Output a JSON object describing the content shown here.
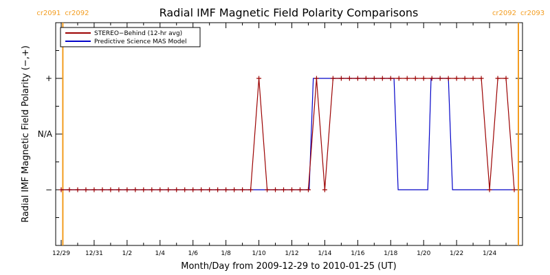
{
  "chart_data": {
    "type": "line",
    "title": "Radial IMF Magnetic Field Polarity Comparisons",
    "xlabel": "Month/Day from 2009-12-29 to 2010-01-25 (UT)",
    "ylabel": "Radial IMF Magnetic Field Polarity (−,+)",
    "xlim": [
      0,
      28
    ],
    "ylim": [
      -2,
      2
    ],
    "x_tick_labels": [
      {
        "day": 0,
        "label": "12/29"
      },
      {
        "day": 2,
        "label": "12/31"
      },
      {
        "day": 4,
        "label": "1/2"
      },
      {
        "day": 6,
        "label": "1/4"
      },
      {
        "day": 8,
        "label": "1/6"
      },
      {
        "day": 10,
        "label": "1/8"
      },
      {
        "day": 12,
        "label": "1/10"
      },
      {
        "day": 14,
        "label": "1/12"
      },
      {
        "day": 16,
        "label": "1/14"
      },
      {
        "day": 18,
        "label": "1/16"
      },
      {
        "day": 20,
        "label": "1/18"
      },
      {
        "day": 22,
        "label": "1/20"
      },
      {
        "day": 24,
        "label": "1/22"
      },
      {
        "day": 26,
        "label": "1/24"
      }
    ],
    "y_tick_labels": [
      {
        "value": 1,
        "label": "+"
      },
      {
        "value": 0,
        "label": "N/A"
      },
      {
        "value": -1,
        "label": "−"
      }
    ],
    "carrington_markers": [
      {
        "day": 0.1,
        "left_label": "cr2091",
        "right_label": "cr2092"
      },
      {
        "day": 27.75,
        "left_label": "cr2092",
        "right_label": "cr2093"
      }
    ],
    "legend": {
      "placement": "top-left",
      "entries": [
        {
          "label": "STEREO−Behind (12-hr avg)",
          "color": "#9b0000"
        },
        {
          "label": "Predictive Science MAS Model",
          "color": "#0000c8"
        }
      ]
    },
    "series": [
      {
        "name": "STEREO−Behind (12-hr avg)",
        "color": "#9b0000",
        "marker": "+",
        "x": [
          0,
          0.5,
          1,
          1.5,
          2,
          2.5,
          3,
          3.5,
          4,
          4.5,
          5,
          5.5,
          6,
          6.5,
          7,
          7.5,
          8,
          8.5,
          9,
          9.5,
          10,
          10.5,
          11,
          11.5,
          12,
          12.5,
          13,
          13.5,
          14,
          14.5,
          15,
          15.5,
          16,
          16.5,
          17,
          17.5,
          18,
          18.5,
          19,
          19.5,
          20,
          20.5,
          21,
          21.5,
          22,
          22.5,
          23,
          23.5,
          24,
          24.5,
          25,
          25.5,
          26,
          26.5,
          27,
          27.5
        ],
        "values": [
          -1,
          -1,
          -1,
          -1,
          -1,
          -1,
          -1,
          -1,
          -1,
          -1,
          -1,
          -1,
          -1,
          -1,
          -1,
          -1,
          -1,
          -1,
          -1,
          -1,
          -1,
          -1,
          -1,
          -1,
          1,
          -1,
          -1,
          -1,
          -1,
          -1,
          -1,
          1,
          -1,
          1,
          1,
          1,
          1,
          1,
          1,
          1,
          1,
          1,
          1,
          1,
          1,
          1,
          1,
          1,
          1,
          1,
          1,
          1,
          -1,
          1,
          1,
          -1
        ]
      },
      {
        "name": "Predictive Science MAS Model",
        "color": "#0000c8",
        "marker": "none",
        "x": [
          0,
          15.05,
          15.3,
          20.2,
          20.45,
          22.25,
          22.45,
          23.5,
          23.75,
          27.4
        ],
        "values": [
          -1,
          -1,
          1,
          1,
          -1,
          -1,
          1,
          1,
          -1,
          -1
        ]
      }
    ]
  }
}
